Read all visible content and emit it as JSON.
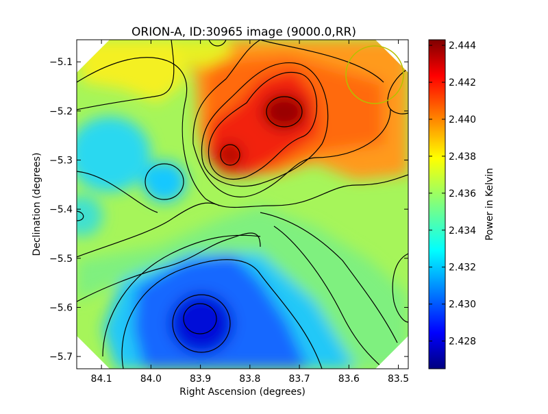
{
  "chart_data": {
    "type": "heatmap",
    "title": "ORION-A, ID:30965 image (9000.0,RR)",
    "xlabel": "Right Ascension (degrees)",
    "ylabel": "Declination (degrees)",
    "colorbar_label": "Power in Kelvin",
    "xlim": [
      84.15,
      83.48
    ],
    "ylim": [
      -5.725,
      -5.055
    ],
    "x_ticks": [
      84.1,
      84.0,
      83.9,
      83.8,
      83.7,
      83.6,
      83.5
    ],
    "x_tick_labels": [
      "84.1",
      "84.0",
      "83.9",
      "83.8",
      "83.7",
      "83.6",
      "83.5"
    ],
    "y_ticks": [
      -5.1,
      -5.2,
      -5.3,
      -5.4,
      -5.5,
      -5.6,
      -5.7
    ],
    "y_tick_labels": [
      "−5.1",
      "−5.2",
      "−5.3",
      "−5.4",
      "−5.5",
      "−5.6",
      "−5.7"
    ],
    "color_range": [
      2.4265,
      2.4443
    ],
    "colorbar_ticks": [
      2.428,
      2.43,
      2.432,
      2.434,
      2.436,
      2.438,
      2.44,
      2.442,
      2.444
    ],
    "colorbar_tick_labels": [
      "2.428",
      "2.430",
      "2.432",
      "2.434",
      "2.436",
      "2.438",
      "2.440",
      "2.442",
      "2.444"
    ],
    "colormap": "jet",
    "colormap_stops": [
      "#00007f",
      "#0000ff",
      "#007fff",
      "#00ffff",
      "#7fff7f",
      "#ffff00",
      "#ff7f00",
      "#ff0000",
      "#7f0000"
    ],
    "features": [
      {
        "kind": "max",
        "ra": 83.735,
        "dec": -5.205,
        "value": 2.4438
      },
      {
        "kind": "max",
        "ra": 83.845,
        "dec": -5.29,
        "value": 2.4425
      },
      {
        "kind": "min",
        "ra": 83.9,
        "dec": -5.63,
        "value": 2.4272
      },
      {
        "kind": "min",
        "ra": 83.975,
        "dec": -5.345,
        "value": 2.433
      }
    ],
    "beam_circle": {
      "ra": 83.55,
      "dec": -5.125,
      "radius_deg": 0.058,
      "color": "#b5c000"
    },
    "contours": true
  }
}
